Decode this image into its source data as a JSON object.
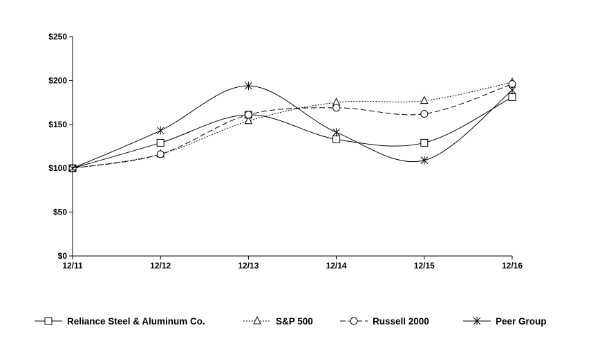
{
  "chart_data": {
    "type": "line",
    "title": "",
    "xlabel": "",
    "ylabel": "",
    "categories": [
      "12/11",
      "12/12",
      "12/13",
      "12/14",
      "12/15",
      "12/16"
    ],
    "y_ticks": [
      "$0",
      "$50",
      "$100",
      "$150",
      "$200",
      "$250"
    ],
    "ylim": [
      0,
      250
    ],
    "grid": false,
    "legend_position": "bottom",
    "series": [
      {
        "name": "Reliance Steel & Aluminum Co.",
        "marker": "square",
        "dash": "solid",
        "color": "#000000",
        "values": [
          100,
          129,
          161,
          133,
          129,
          181
        ]
      },
      {
        "name": "S&P 500",
        "marker": "triangle",
        "dash": "dotted",
        "color": "#000000",
        "values": [
          100,
          116,
          154,
          175,
          177,
          198
        ]
      },
      {
        "name": "Russell 2000",
        "marker": "circle",
        "dash": "dashed",
        "color": "#000000",
        "values": [
          100,
          116,
          161,
          169,
          162,
          196
        ]
      },
      {
        "name": "Peer Group",
        "marker": "star",
        "dash": "solid",
        "color": "#000000",
        "values": [
          100,
          143,
          194,
          141,
          109,
          189
        ]
      }
    ]
  }
}
